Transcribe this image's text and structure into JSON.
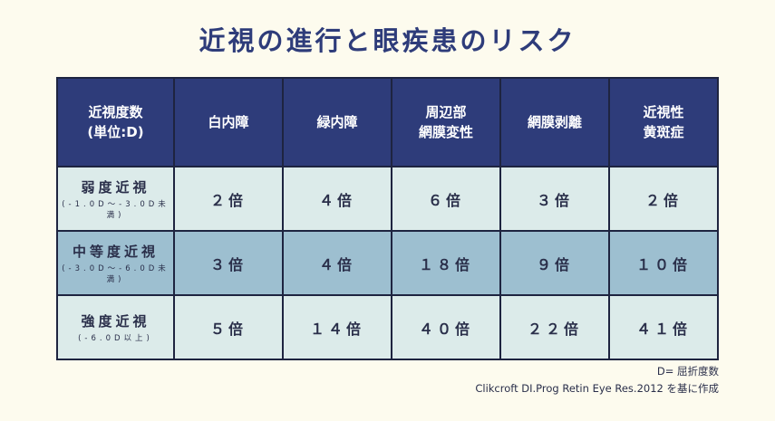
{
  "title": "近視の進行と眼疾患のリスク",
  "table": {
    "header": {
      "col0_line1": "近視度数",
      "col0_line2": "(単位:D)",
      "cols": [
        {
          "line1": "白内障",
          "line2": ""
        },
        {
          "line1": "緑内障",
          "line2": ""
        },
        {
          "line1": "周辺部",
          "line2": "網膜変性"
        },
        {
          "line1": "網膜剥離",
          "line2": ""
        },
        {
          "line1": "近視性",
          "line2": "黄斑症"
        }
      ]
    },
    "rows": [
      {
        "label": "弱度近視",
        "sub": "(-1.0D〜-3.0D未満)",
        "values": [
          "２倍",
          "４倍",
          "６倍",
          "３倍",
          "２倍"
        ]
      },
      {
        "label": "中等度近視",
        "sub": "(-3.0D〜-6.0D未満)",
        "values": [
          "３倍",
          "４倍",
          "１８倍",
          "９倍",
          "１０倍"
        ]
      },
      {
        "label": "強度近視",
        "sub": "(-6.0D以上)",
        "values": [
          "５倍",
          "１４倍",
          "４０倍",
          "２２倍",
          "４１倍"
        ]
      }
    ]
  },
  "notes": {
    "line1": "D= 屈折度数",
    "line2": "Clikcroft DI.Prog Retin Eye Res.2012 を基に作成"
  },
  "colors": {
    "background": "#fdfbee",
    "header_bg": "#2e3c7a",
    "row_light": "#dcebea",
    "row_mid": "#9dbfd0"
  }
}
